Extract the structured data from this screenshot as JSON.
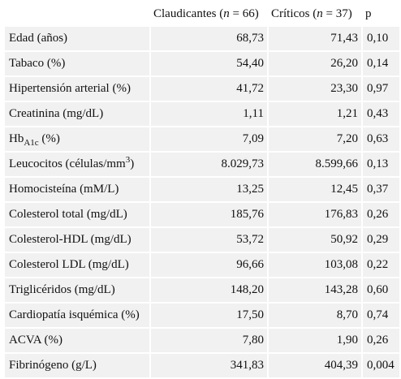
{
  "header": {
    "col1": "",
    "col2": {
      "prefix": "Claudicantes (",
      "n": "n",
      "suffix": " = 66)"
    },
    "col3": {
      "prefix": "Críticos (",
      "n": "n",
      "suffix": " = 37)"
    },
    "col4": "p"
  },
  "rows": [
    {
      "label": "Edad (años)",
      "claudicantes": "68,73",
      "criticos": "71,43",
      "p": "0,10"
    },
    {
      "label": "Tabaco (%)",
      "claudicantes": "54,40",
      "criticos": "26,20",
      "p": "0,14"
    },
    {
      "label": "Hipertensión arterial (%)",
      "claudicantes": "41,72",
      "criticos": "23,30",
      "p": "0,97"
    },
    {
      "label": "Creatinina (mg/dL)",
      "claudicantes": "1,11",
      "criticos": "1,21",
      "p": "0,43"
    },
    {
      "label_main": "Hb",
      "label_sub": "A1c",
      "label_rest": " (%)",
      "claudicantes": "7,09",
      "criticos": "7,20",
      "p": "0,63"
    },
    {
      "label_main": "Leucocitos (células/mm",
      "label_sup": "3",
      "label_rest": ")",
      "claudicantes": "8.029,73",
      "criticos": "8.599,66",
      "p": "0,13"
    },
    {
      "label": "Homocisteína (mM/L)",
      "claudicantes": "13,25",
      "criticos": "12,45",
      "p": "0,37"
    },
    {
      "label": "Colesterol total (mg/dL)",
      "claudicantes": "185,76",
      "criticos": "176,83",
      "p": "0,26"
    },
    {
      "label": "Colesterol-HDL (mg/dL)",
      "claudicantes": "53,72",
      "criticos": "50,92",
      "p": "0,29"
    },
    {
      "label": "Colesterol LDL (mg/dL)",
      "claudicantes": "96,66",
      "criticos": "103,08",
      "p": "0,22"
    },
    {
      "label": "Triglicéridos (mg/dL)",
      "claudicantes": "148,20",
      "criticos": "143,28",
      "p": "0,60"
    },
    {
      "label": "Cardiopatía isquémica (%)",
      "claudicantes": "17,50",
      "criticos": "8,70",
      "p": "0,74"
    },
    {
      "label": "ACVA (%)",
      "claudicantes": "7,80",
      "criticos": "1,90",
      "p": "0,26"
    },
    {
      "label": "Fibrinógeno (g/L)",
      "claudicantes": "341,83",
      "criticos": "404,39",
      "p": "0,004"
    }
  ]
}
